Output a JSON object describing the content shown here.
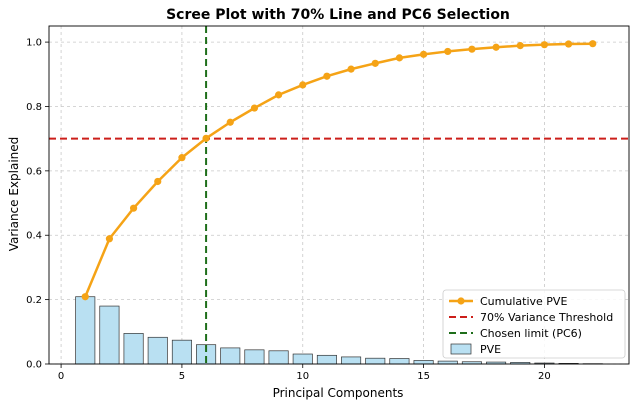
{
  "chart_data": {
    "type": "bar",
    "title": "Scree Plot with 70% Line and PC6 Selection",
    "xlabel": "Principal Components",
    "ylabel": "Variance Explained",
    "xlim": [
      -0.5,
      23.5
    ],
    "ylim": [
      0.0,
      1.05
    ],
    "x_ticks": [
      0,
      5,
      10,
      15,
      20
    ],
    "x_tick_labels": [
      "0",
      "5",
      "10",
      "15",
      "20"
    ],
    "y_ticks": [
      0.0,
      0.2,
      0.4,
      0.6,
      0.8,
      1.0
    ],
    "y_tick_labels": [
      "0.0",
      "0.2",
      "0.4",
      "0.6",
      "0.8",
      "1.0"
    ],
    "grid": true,
    "legend_position": "lower-right",
    "x": [
      1,
      2,
      3,
      4,
      5,
      6,
      7,
      8,
      9,
      10,
      11,
      12,
      13,
      14,
      15,
      16,
      17,
      18,
      19,
      20,
      21,
      22
    ],
    "series": [
      {
        "name": "PVE",
        "type": "bar",
        "color": "#b9e0f2",
        "values": [
          0.209,
          0.18,
          0.095,
          0.083,
          0.074,
          0.06,
          0.05,
          0.044,
          0.041,
          0.031,
          0.027,
          0.022,
          0.018,
          0.017,
          0.011,
          0.009,
          0.007,
          0.006,
          0.005,
          0.003,
          0.002,
          0.001
        ]
      },
      {
        "name": "Cumulative PVE",
        "type": "line",
        "color": "#f5a316",
        "values": [
          0.209,
          0.389,
          0.484,
          0.567,
          0.641,
          0.701,
          0.751,
          0.795,
          0.836,
          0.867,
          0.894,
          0.916,
          0.934,
          0.951,
          0.962,
          0.971,
          0.978,
          0.984,
          0.989,
          0.992,
          0.994,
          0.995
        ]
      }
    ],
    "reference_lines": [
      {
        "name": "70% Variance Threshold",
        "orientation": "horizontal",
        "value": 0.7,
        "color": "#cc1f1a",
        "style": "dashed"
      },
      {
        "name": "Chosen limit (PC6)",
        "orientation": "vertical",
        "value": 6,
        "color": "#1e6e1a",
        "style": "dashed"
      }
    ],
    "legend": [
      {
        "label": "Cumulative PVE",
        "kind": "line-marker",
        "color": "#f5a316"
      },
      {
        "label": "70% Variance Threshold",
        "kind": "dashed",
        "color": "#cc1f1a"
      },
      {
        "label": "Chosen limit (PC6)",
        "kind": "dashed",
        "color": "#1e6e1a"
      },
      {
        "label": "PVE",
        "kind": "patch",
        "color": "#b9e0f2"
      }
    ]
  }
}
